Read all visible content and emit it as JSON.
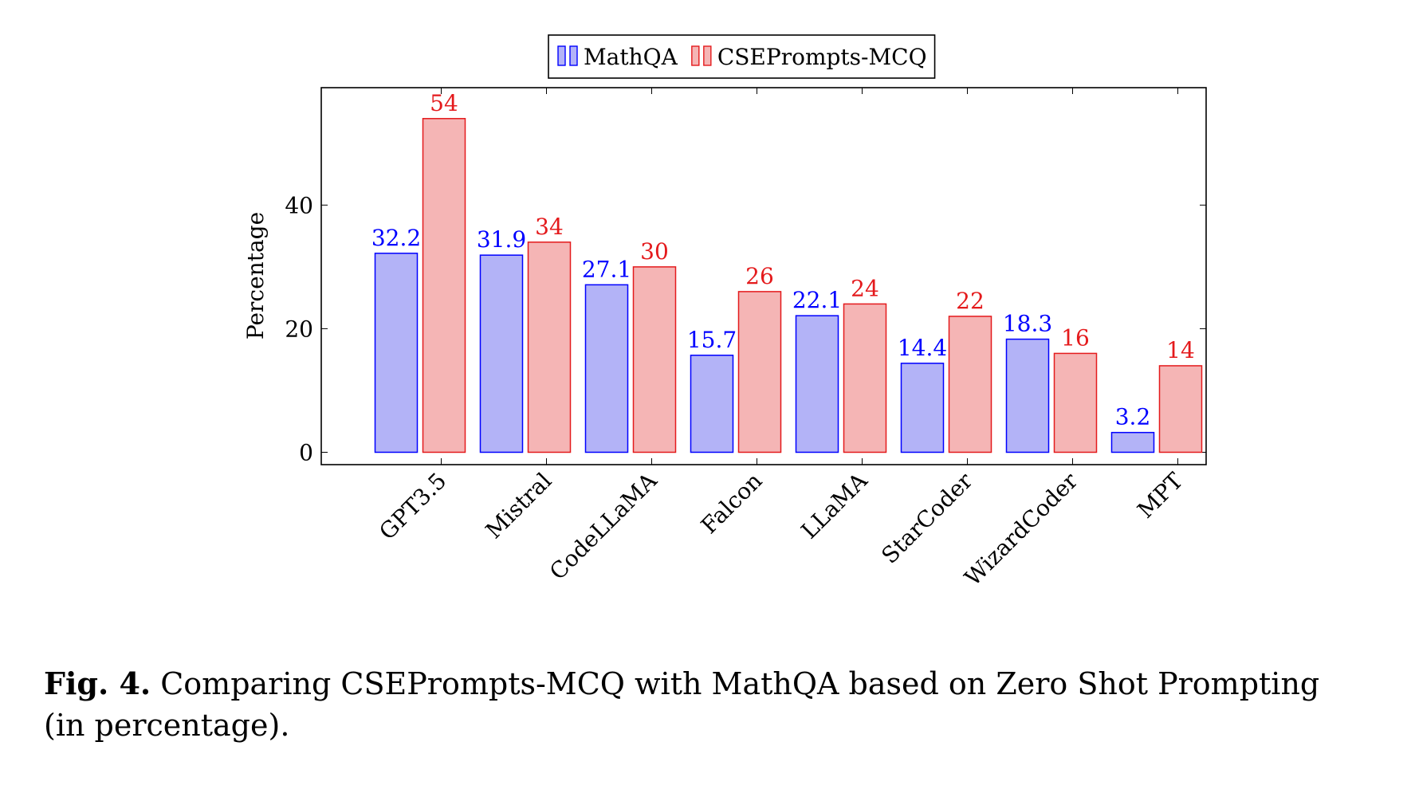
{
  "chart_data": {
    "type": "bar",
    "categories": [
      "GPT3.5",
      "Mistral",
      "CodeLLaMA",
      "Falcon",
      "LLaMA",
      "StarCoder",
      "WizardCoder",
      "MPT"
    ],
    "series": [
      {
        "name": "MathQA",
        "values": [
          32.2,
          31.9,
          27.1,
          15.7,
          22.1,
          14.4,
          18.3,
          3.2
        ],
        "color": "#0000ff",
        "fill": "#b3b3f7"
      },
      {
        "name": "CSEPrompts-MCQ",
        "values": [
          54,
          34,
          30,
          26,
          24,
          22,
          16,
          14
        ],
        "color": "#e41a1c",
        "fill": "#f5b5b5"
      }
    ],
    "ylabel": "Percentage",
    "xlabel": "",
    "ylim": [
      -2,
      59
    ],
    "yticks": [
      0,
      20,
      40
    ],
    "grid": false,
    "legend": "top-center"
  },
  "caption": {
    "label": "Fig. 4.",
    "text": "Comparing CSEPrompts-MCQ with MathQA based on Zero Shot Prompting",
    "text_line2": "(in percentage)."
  }
}
